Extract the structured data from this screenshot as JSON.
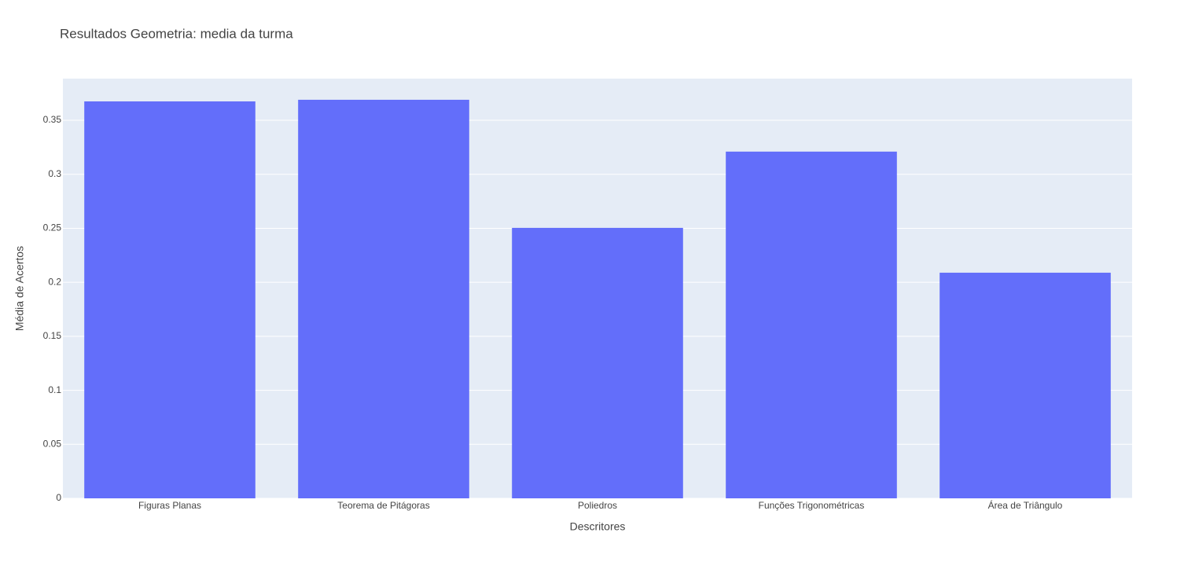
{
  "chart_data": {
    "type": "bar",
    "title": "Resultados Geometria: media da turma",
    "x_label": "Descritores",
    "y_label": "Média de Acertos",
    "categories": [
      "Figuras Planas",
      "Teorema de Pitágoras",
      "Poliedros",
      "Funções Trigonométricas",
      "Área de Triângulo"
    ],
    "values": [
      0.3675,
      0.369,
      0.2504,
      0.321,
      0.2089
    ],
    "color": "#636efa",
    "ylim": [
      0,
      0.3886
    ],
    "yticks": [
      0,
      0.05,
      0.1,
      0.15,
      0.2,
      0.25,
      0.3,
      0.35
    ],
    "grid": true
  }
}
